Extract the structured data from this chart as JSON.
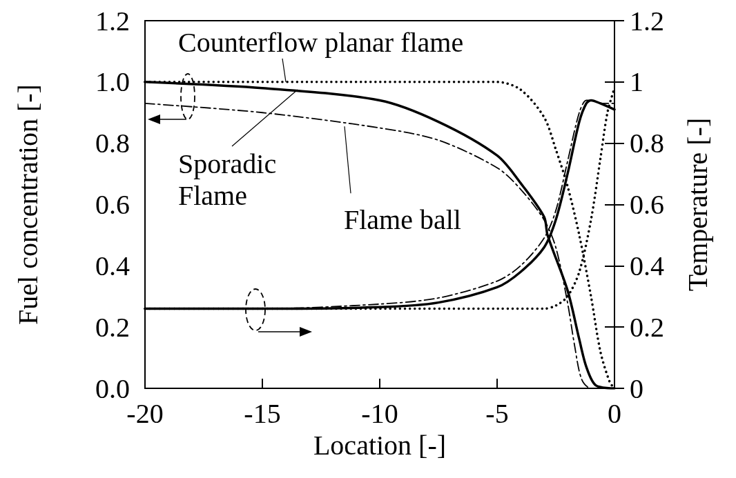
{
  "chart_data": {
    "type": "line",
    "xlabel": "Location [-]",
    "ylabel": "Fuel concentration [-]",
    "y2label": "Temperature [-]",
    "xlim": [
      -20,
      0
    ],
    "xticks": [
      -20,
      -15,
      -10,
      -5,
      0
    ],
    "ylim": [
      0,
      1.2
    ],
    "yticks": [
      {
        "value": 0,
        "label": "0.0"
      },
      0.2,
      0.4,
      0.6,
      0.8,
      {
        "value": 1,
        "label": "1.0"
      },
      1.2
    ],
    "y2lim": [
      0,
      1.2
    ],
    "y2ticks": [
      0,
      0.2,
      0.4,
      0.6,
      0.8,
      1,
      1.2
    ],
    "grid": false,
    "marker": "none",
    "series": [
      {
        "color": "#000000",
        "line_style": "solid",
        "x": [
          -20,
          -15,
          -10,
          -7.5,
          -5,
          -4,
          -3,
          -2.85,
          -2,
          -1.5,
          -1.2,
          -0.8,
          0
        ],
        "values": [
          1.0,
          0.98,
          0.94,
          0.87,
          0.76,
          0.67,
          0.56,
          0.5,
          0.32,
          0.16,
          0.07,
          0.01,
          0
        ]
      },
      {
        "color": "#000000",
        "line_style": "dashed",
        "x": [
          -20,
          -15,
          -10,
          -7.5,
          -5,
          -4,
          -3,
          -2.5,
          -2,
          -1.7,
          -1.4,
          -1,
          0
        ],
        "values": [
          0.93,
          0.9,
          0.85,
          0.81,
          0.72,
          0.65,
          0.55,
          0.46,
          0.28,
          0.14,
          0.03,
          0,
          0
        ]
      },
      {
        "color": "#000000",
        "line_style": "dotted",
        "x": [
          -20,
          -10,
          -5,
          -4,
          -3,
          -2.5,
          -2,
          -1.5,
          -1,
          -0.6,
          -0.2,
          0
        ],
        "values": [
          1.0,
          1.0,
          1.0,
          0.975,
          0.885,
          0.78,
          0.66,
          0.5,
          0.3,
          0.12,
          0.02,
          0
        ]
      },
      {
        "color": "#000000",
        "line_style": "solid",
        "x": [
          -20,
          -15,
          -10,
          -7.5,
          -5,
          -4,
          -3,
          -2.5,
          -2,
          -1.5,
          -1.2,
          -1,
          -0.6,
          0
        ],
        "values": [
          0.26,
          0.26,
          0.265,
          0.28,
          0.33,
          0.38,
          0.46,
          0.55,
          0.7,
          0.87,
          0.93,
          0.94,
          0.93,
          0.91
        ]
      },
      {
        "color": "#000000",
        "line_style": "dashed",
        "x": [
          -20,
          -15,
          -10,
          -7.5,
          -5,
          -4,
          -3,
          -2.5,
          -2,
          -1.5,
          -1.2,
          -1,
          -0.5,
          0
        ],
        "values": [
          0.26,
          0.26,
          0.275,
          0.295,
          0.35,
          0.4,
          0.49,
          0.58,
          0.74,
          0.9,
          0.94,
          0.94,
          0.93,
          0.93
        ]
      },
      {
        "color": "#000000",
        "line_style": "dotted",
        "x": [
          -20,
          -5,
          -3,
          -2.5,
          -2,
          -1.5,
          -1,
          -0.6,
          -0.3,
          0
        ],
        "values": [
          0.26,
          0.26,
          0.26,
          0.27,
          0.3,
          0.38,
          0.55,
          0.75,
          0.9,
          0.98
        ]
      }
    ],
    "annotations": [
      {
        "text": "Counterflow planar flame",
        "x": -14,
        "y": 1.0
      },
      {
        "text": "Sporadic\nFlame",
        "x": -13.5,
        "y": 0.975
      },
      {
        "text": "Flame ball",
        "x": -11.5,
        "y": 0.855
      }
    ]
  }
}
